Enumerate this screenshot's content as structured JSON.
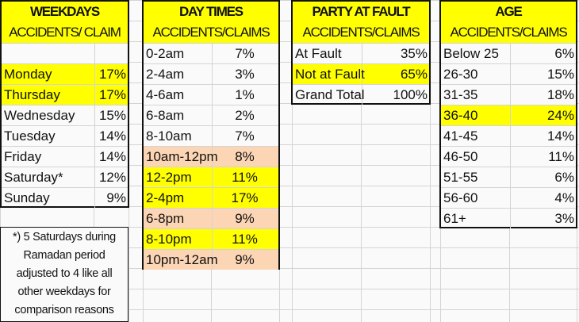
{
  "colors": {
    "highlight_yellow": "#ffff00",
    "highlight_peach": "#fcd5b4",
    "grid": "#d4d4d4"
  },
  "weekdays": {
    "title": "WEEKDAYS",
    "subtitle": "ACCIDENTS/ CLAIM",
    "rows": [
      {
        "label": "",
        "value": "",
        "highlight": "none"
      },
      {
        "label": "Monday",
        "value": "17%",
        "highlight": "yellow"
      },
      {
        "label": "Thursday",
        "value": "17%",
        "highlight": "yellow"
      },
      {
        "label": "Wednesday",
        "value": "15%",
        "highlight": "none"
      },
      {
        "label": "Tuesday",
        "value": "14%",
        "highlight": "none"
      },
      {
        "label": "Friday",
        "value": "14%",
        "highlight": "none"
      },
      {
        "label": "Saturday*",
        "value": "12%",
        "highlight": "none"
      },
      {
        "label": "Sunday",
        "value": "9%",
        "highlight": "none"
      }
    ]
  },
  "day_times": {
    "title": "DAY TIMES",
    "subtitle": "ACCIDENTS/CLAIMS",
    "rows": [
      {
        "label": "0-2am",
        "value": "7%",
        "highlight": "none"
      },
      {
        "label": "2-4am",
        "value": "3%",
        "highlight": "none"
      },
      {
        "label": "4-6am",
        "value": "1%",
        "highlight": "none"
      },
      {
        "label": "6-8am",
        "value": "2%",
        "highlight": "none"
      },
      {
        "label": "8-10am",
        "value": "7%",
        "highlight": "none"
      },
      {
        "label": "10am-12pm",
        "value": "8%",
        "highlight": "peach"
      },
      {
        "label": "12-2pm",
        "value": "11%",
        "highlight": "yellow"
      },
      {
        "label": "2-4pm",
        "value": "17%",
        "highlight": "yellow"
      },
      {
        "label": "6-8pm",
        "value": "9%",
        "highlight": "peach"
      },
      {
        "label": "8-10pm",
        "value": "11%",
        "highlight": "yellow"
      },
      {
        "label": "10pm-12am",
        "value": "9%",
        "highlight": "peach"
      }
    ]
  },
  "party_at_fault": {
    "title": "PARTY AT FAULT",
    "subtitle": "ACCIDENTS/CLAIMS",
    "rows": [
      {
        "label": "At Fault",
        "value": "35%",
        "highlight": "none"
      },
      {
        "label": "Not at Fault",
        "value": "65%",
        "highlight": "yellow"
      },
      {
        "label": "Grand Total",
        "value": "100%",
        "highlight": "none"
      }
    ]
  },
  "age": {
    "title": "AGE",
    "subtitle": "ACCIDENTS/CLAIMS",
    "rows": [
      {
        "label": "Below 25",
        "value": "6%",
        "highlight": "none"
      },
      {
        "label": "26-30",
        "value": "15%",
        "highlight": "none"
      },
      {
        "label": "31-35",
        "value": "18%",
        "highlight": "none"
      },
      {
        "label": "36-40",
        "value": "24%",
        "highlight": "yellow"
      },
      {
        "label": "41-45",
        "value": "14%",
        "highlight": "none"
      },
      {
        "label": "46-50",
        "value": "11%",
        "highlight": "none"
      },
      {
        "label": "51-55",
        "value": "6%",
        "highlight": "none"
      },
      {
        "label": "56-60",
        "value": "4%",
        "highlight": "none"
      },
      {
        "label": "61+",
        "value": "3%",
        "highlight": "none"
      }
    ]
  },
  "note": {
    "lines": [
      "*) 5 Saturdays during",
      "Ramadan period",
      "adjusted to 4 like all",
      "other weekdays for",
      "comparison reasons"
    ]
  }
}
